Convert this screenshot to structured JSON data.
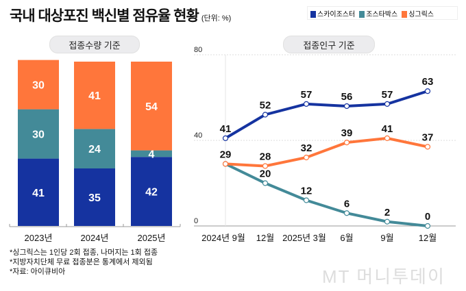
{
  "title": "국내 대상포진 백신별 점유율 현황",
  "unit": "(단위: %)",
  "legend": [
    {
      "name": "스카이조스터",
      "color": "#1533a0"
    },
    {
      "name": "조스타박스",
      "color": "#438a98"
    },
    {
      "name": "싱그릭스",
      "color": "#ff763b"
    }
  ],
  "chart_data": [
    {
      "type": "bar",
      "stacked": true,
      "subtitle": "접종수량 기준",
      "categories": [
        "2023년",
        "2024년",
        "2025년"
      ],
      "series": [
        {
          "name": "스카이조스터",
          "values": [
            41,
            35,
            42
          ]
        },
        {
          "name": "조스타박스",
          "values": [
            30,
            24,
            4
          ]
        },
        {
          "name": "싱그릭스",
          "values": [
            30,
            41,
            54
          ]
        }
      ]
    },
    {
      "type": "line",
      "subtitle": "접종인구 기준",
      "categories": [
        "2024년 9월",
        "12월",
        "2025년 3월",
        "6월",
        "9월",
        "12월"
      ],
      "ylim": [
        0,
        80
      ],
      "yticks": [
        "0",
        "40",
        "80"
      ],
      "series": [
        {
          "name": "스카이조스터",
          "values": [
            41,
            52,
            57,
            56,
            57,
            63
          ]
        },
        {
          "name": "조스타박스",
          "values": [
            29,
            20,
            12,
            6,
            2,
            0
          ]
        },
        {
          "name": "싱그릭스",
          "values": [
            29,
            28,
            32,
            39,
            41,
            37
          ]
        }
      ]
    }
  ],
  "notes": [
    "*싱그릭스는 1인당 2회 접종, 나머지는 1회 접종",
    "*지방자치단체 무료 접종분은 통계에서 제외됨",
    "*자료: 아이큐비아"
  ],
  "watermark": "MT 머니투데이"
}
